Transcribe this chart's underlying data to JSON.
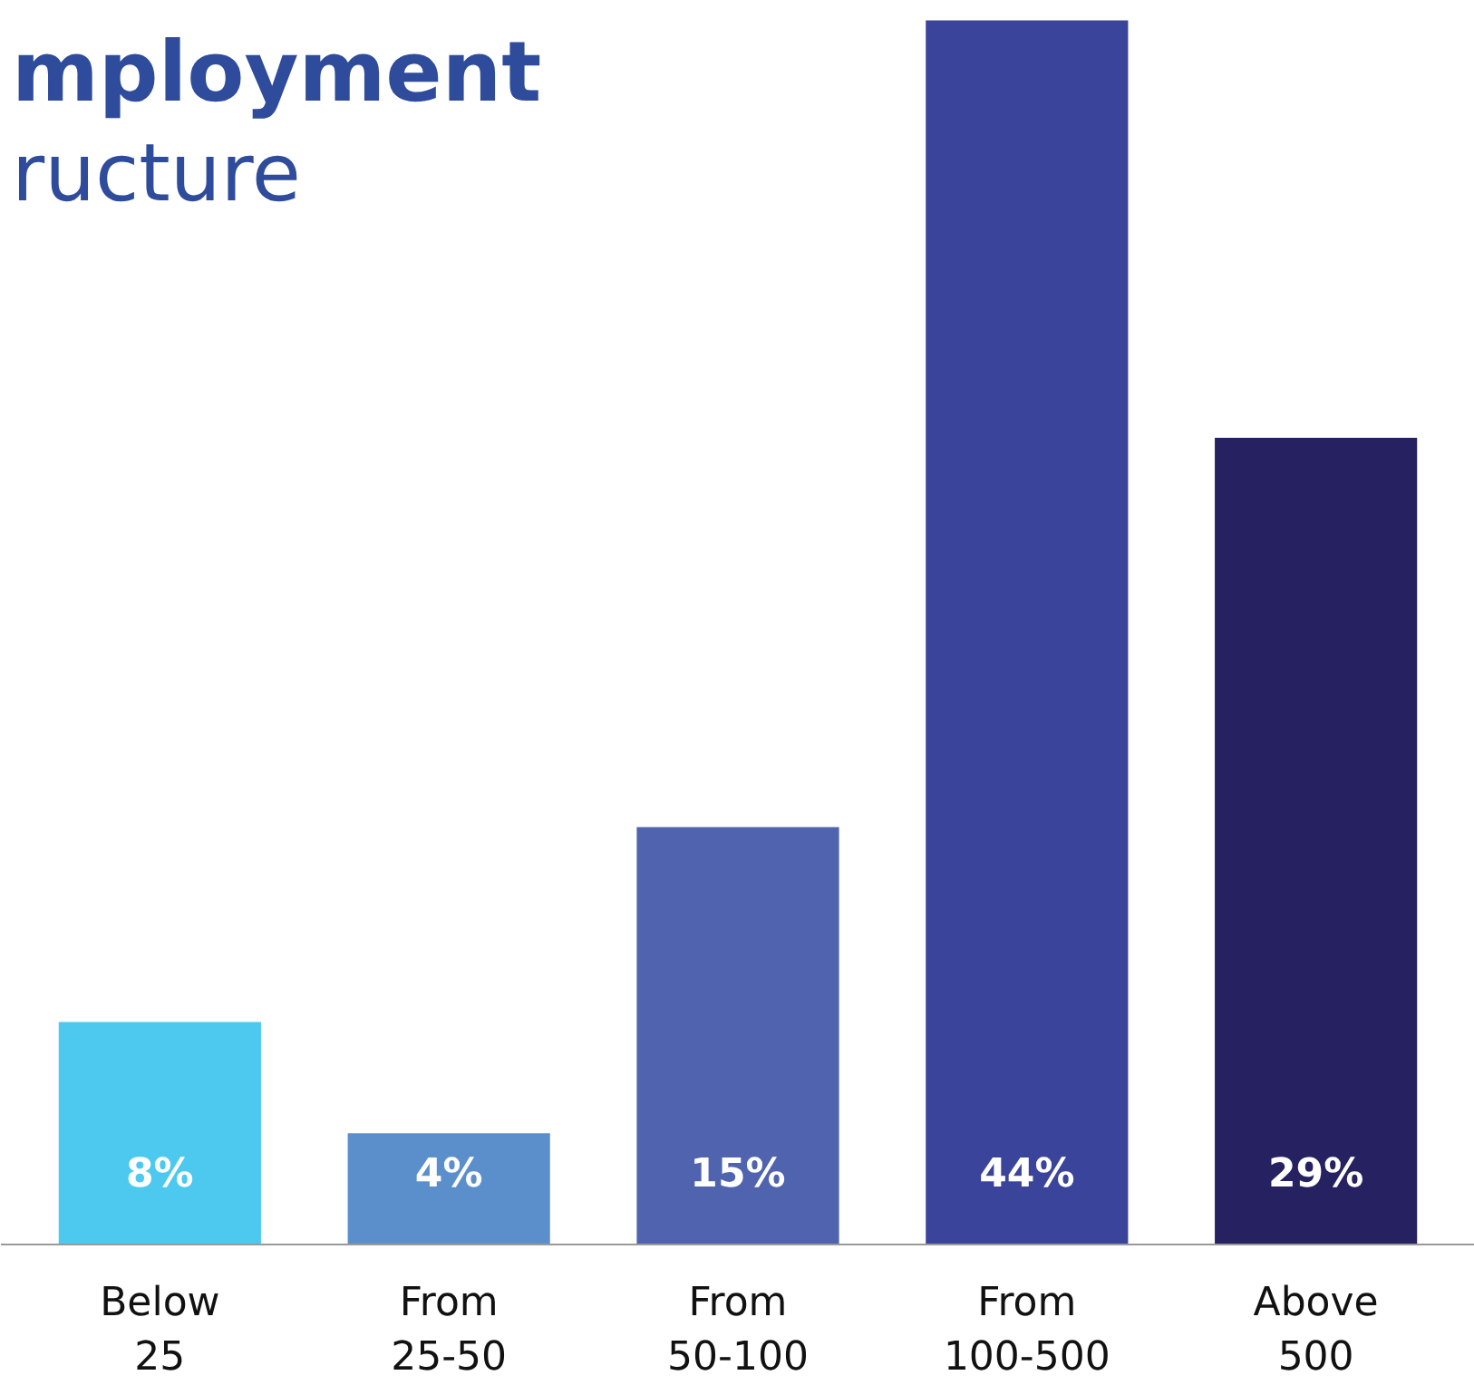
{
  "chart_data": {
    "type": "bar",
    "title": "mployment",
    "subtitle": "ructure",
    "categories": [
      "Below 25",
      "From 25-50",
      "From 50-100",
      "From 100-500",
      "Above 500"
    ],
    "values": [
      8,
      4,
      15,
      44,
      29
    ],
    "colors": [
      "#4dc9f0",
      "#5b8fcb",
      "#4f63ae",
      "#3a449a",
      "#262262"
    ],
    "value_labels": [
      "8%",
      "4%",
      "15%",
      "44%",
      "29%"
    ],
    "grid": false
  }
}
